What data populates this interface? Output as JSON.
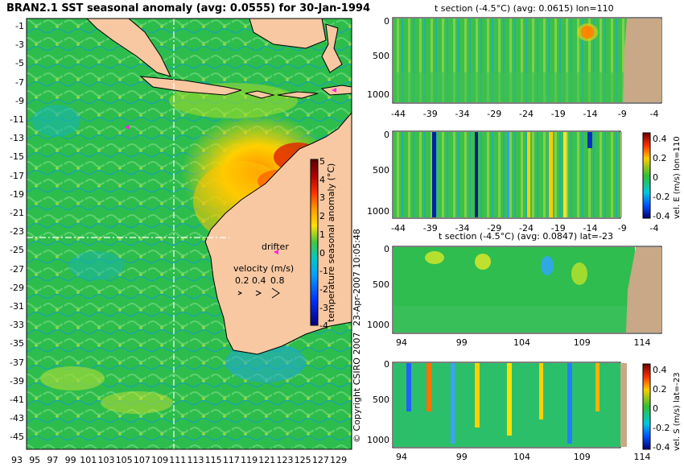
{
  "main_map": {
    "title": "BRAN2.1 SST seasonal anomaly (avg: 0.0555) for 30-Jan-1994",
    "lat_ticks": [
      "-1",
      "-3",
      "-5",
      "-7",
      "-9",
      "-11",
      "-13",
      "-15",
      "-17",
      "-19",
      "-21",
      "-23",
      "-25",
      "-27",
      "-29",
      "-31",
      "-33",
      "-35",
      "-37",
      "-39",
      "-41",
      "-43",
      "-45"
    ],
    "lon_ticks": [
      "93",
      "95",
      "97",
      "99",
      "101",
      "103",
      "105",
      "107",
      "109",
      "111",
      "113",
      "115",
      "117",
      "119",
      "121",
      "123",
      "125",
      "127",
      "129"
    ],
    "colorbar": {
      "label": "temperature seasonal anomaly (°C)",
      "ticks": [
        "5",
        "4",
        "3",
        "2",
        "1",
        "0",
        "-1",
        "-2",
        "-3",
        "-4"
      ]
    },
    "drifter_label": "drifter",
    "velocity_legend": {
      "title": "velocity (m/s)",
      "values": [
        "0.2",
        "0.4",
        "0.8"
      ]
    },
    "colors": {
      "land": "#f7c8a2",
      "ocean": "#2cbf4a"
    }
  },
  "panels": [
    {
      "id": "t-section-lon",
      "title": "t section (-4.5°C) (avg: 0.0615) lon=110",
      "x_ticks": [
        "-44",
        "-39",
        "-34",
        "-29",
        "-24",
        "-19",
        "-14",
        "-9",
        "-4"
      ],
      "y_ticks": [
        "0",
        "500",
        "1000"
      ]
    },
    {
      "id": "vel-e-lon",
      "title": "",
      "side_label": "vel. E (m/s) lon=110",
      "x_ticks": [
        "-44",
        "-39",
        "-34",
        "-29",
        "-24",
        "-19",
        "-14",
        "-9",
        "-4"
      ],
      "y_ticks": [
        "0",
        "500",
        "1000"
      ],
      "cbar_ticks": [
        "0.4",
        "0.2",
        "0",
        "-0.2",
        "-0.4"
      ]
    },
    {
      "id": "t-section-lat",
      "title": "t section (-4.5°C) (avg: 0.0847) lat=-23",
      "x_ticks": [
        "94",
        "99",
        "104",
        "109",
        "114"
      ],
      "y_ticks": [
        "0",
        "500",
        "1000"
      ]
    },
    {
      "id": "vel-s-lat",
      "title": "",
      "side_label": "vel. S (m/s) lat=-23",
      "x_ticks": [
        "94",
        "99",
        "104",
        "109",
        "114"
      ],
      "y_ticks": [
        "0",
        "500",
        "1000"
      ],
      "cbar_ticks": [
        "0.4",
        "0.2",
        "0",
        "-0.2",
        "-0.4"
      ]
    }
  ],
  "stamps": {
    "date": "23-Apr-2007 10:05:48",
    "copyright": "© Copyright CSIRO 2007"
  }
}
